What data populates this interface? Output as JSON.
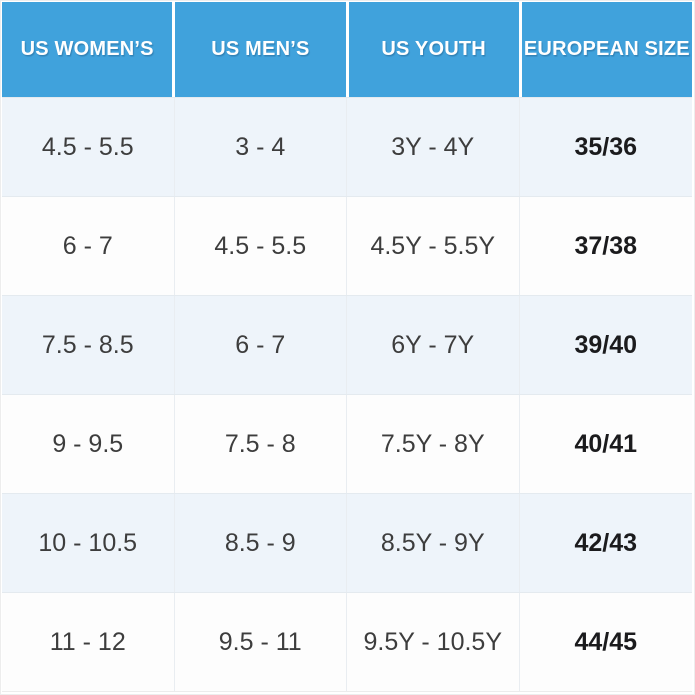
{
  "chart_data": {
    "type": "table",
    "columns": [
      "US WOMEN’S",
      "US MEN’S",
      "US YOUTH",
      "EUROPEAN SIZE"
    ],
    "rows": [
      [
        "4.5 - 5.5",
        "3 - 4",
        "3Y - 4Y",
        "35/36"
      ],
      [
        "6 - 7",
        "4.5 - 5.5",
        "4.5Y - 5.5Y",
        "37/38"
      ],
      [
        "7.5 - 8.5",
        "6 - 7",
        "6Y - 7Y",
        "39/40"
      ],
      [
        "9 - 9.5",
        "7.5 - 8",
        "7.5Y - 8Y",
        "40/41"
      ],
      [
        "10 - 10.5",
        "8.5 - 9",
        "8.5Y - 9Y",
        "42/43"
      ],
      [
        "11 - 12",
        "9.5 - 11",
        "9.5Y - 10.5Y",
        "44/45"
      ]
    ],
    "layout": {
      "header_position": "top",
      "grid": "on",
      "alternating_rows": true
    }
  },
  "colors": {
    "header_bg": "#40a2dc",
    "header_text": "#ffffff",
    "row_alt_bg": "#eef4fa",
    "row_bg": "#fdfdfd",
    "body_text": "#3d3d3d",
    "euro_text": "#1b1b1d"
  }
}
